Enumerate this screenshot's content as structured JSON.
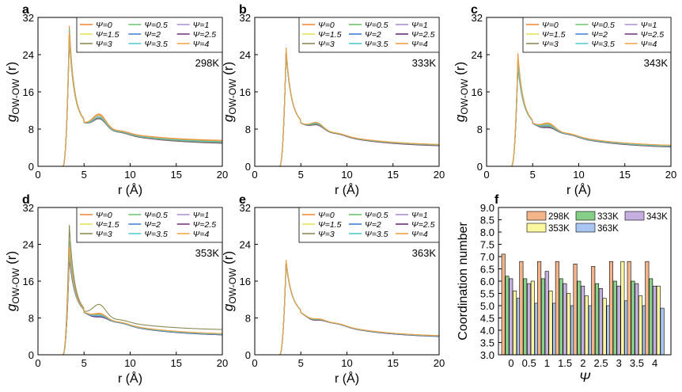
{
  "figure": {
    "xlabel": "r (Å)",
    "ylabel": "g",
    "ylabel_sub": "OW-OW",
    "ylabel_suffix": " (r)"
  },
  "legend_entries": [
    "Ψ=0",
    "Ψ=0.5",
    "Ψ=1",
    "Ψ=1.5",
    "Ψ=2",
    "Ψ=2.5",
    "Ψ=3",
    "Ψ=3.5",
    "Ψ=4"
  ],
  "series_colors": [
    "#ef8a3c",
    "#6cc36a",
    "#a98fd0",
    "#e4e25a",
    "#3f7fd6",
    "#6a2f78",
    "#8a8a55",
    "#4fc7c9",
    "#f0a040"
  ],
  "temp_colors": {
    "298K": "#f4b48a",
    "333K": "#86cf88",
    "343K": "#c6afe0",
    "353K": "#fbf7a0",
    "363K": "#a9c6f2"
  },
  "chart_data": [
    {
      "panel": "a",
      "type": "line",
      "temperature": "298K",
      "xlabel": "r (Å)",
      "ylabel": "gOW-OW (r)",
      "xlim": [
        0,
        20
      ],
      "ylim": [
        0,
        32
      ],
      "xticks": [
        0,
        5,
        10,
        15,
        20
      ],
      "yticks": [
        0,
        8,
        16,
        24,
        32
      ],
      "peak1": {
        "r": 3.4,
        "g": [
          30.2,
          29.6,
          29.0,
          28.6,
          28.2,
          27.8,
          27.5,
          27.8,
          28.5
        ]
      },
      "peak2": {
        "r": 6.5,
        "g": [
          10.8,
          10.5,
          10.2,
          10.0,
          9.9,
          9.8,
          9.9,
          10.1,
          10.6
        ]
      },
      "tail_r20": {
        "g": [
          5.6,
          5.4,
          5.2,
          5.1,
          5.0,
          4.9,
          5.0,
          5.2,
          5.5
        ]
      }
    },
    {
      "panel": "b",
      "type": "line",
      "temperature": "333K",
      "xlabel": "r (Å)",
      "ylabel": "gOW-OW (r)",
      "xlim": [
        0,
        20
      ],
      "ylim": [
        0,
        32
      ],
      "xticks": [
        0,
        5,
        10,
        15,
        20
      ],
      "yticks": [
        0,
        8,
        16,
        24,
        32
      ],
      "peak1": {
        "r": 3.5,
        "g": [
          25.5,
          25.2,
          25.0,
          24.9,
          24.8,
          24.6,
          24.5,
          24.7,
          25.1
        ]
      },
      "peak2": {
        "r": 6.6,
        "g": [
          9.0,
          8.9,
          8.8,
          8.7,
          8.6,
          8.5,
          8.6,
          8.8,
          9.0
        ]
      },
      "tail_r20": {
        "g": [
          4.6,
          4.5,
          4.5,
          4.4,
          4.4,
          4.3,
          4.4,
          4.5,
          4.6
        ]
      }
    },
    {
      "panel": "c",
      "type": "line",
      "temperature": "343K",
      "xlabel": "r (Å)",
      "ylabel": "gOW-OW (r)",
      "xlim": [
        0,
        20
      ],
      "ylim": [
        0,
        32
      ],
      "xticks": [
        0,
        5,
        10,
        15,
        20
      ],
      "yticks": [
        0,
        8,
        16,
        24,
        32
      ],
      "peak1": {
        "r": 3.5,
        "g": [
          24.3,
          23.6,
          23.0,
          22.6,
          22.2,
          21.8,
          21.5,
          22.0,
          23.8
        ]
      },
      "peak2": {
        "r": 6.6,
        "g": [
          8.9,
          8.6,
          8.4,
          8.2,
          8.0,
          7.9,
          8.1,
          8.3,
          8.8
        ]
      },
      "tail_r20": {
        "g": [
          4.4,
          4.3,
          4.2,
          4.1,
          4.1,
          4.0,
          4.1,
          4.2,
          4.4
        ]
      }
    },
    {
      "panel": "d",
      "type": "line",
      "temperature": "353K",
      "xlabel": "r (Å)",
      "ylabel": "gOW-OW (r)",
      "xlim": [
        0,
        20
      ],
      "ylim": [
        0,
        32
      ],
      "xticks": [
        0,
        5,
        10,
        15,
        20
      ],
      "yticks": [
        0,
        8,
        16,
        24,
        32
      ],
      "peak1": {
        "r": 3.4,
        "g": [
          22.5,
          24.8,
          23.8,
          21.8,
          21.5,
          21.2,
          28.2,
          22.0,
          23.5
        ]
      },
      "peak2": {
        "r": 6.6,
        "g": [
          8.6,
          8.4,
          8.2,
          8.0,
          7.9,
          7.8,
          10.5,
          8.1,
          8.5
        ]
      },
      "tail_r20": {
        "g": [
          4.5,
          4.4,
          4.3,
          4.3,
          4.2,
          4.2,
          5.5,
          4.3,
          4.5
        ]
      }
    },
    {
      "panel": "e",
      "type": "line",
      "temperature": "363K",
      "xlabel": "r (Å)",
      "ylabel": "gOW-OW (r)",
      "xlim": [
        0,
        20
      ],
      "ylim": [
        0,
        32
      ],
      "xticks": [
        0,
        5,
        10,
        15,
        20
      ],
      "yticks": [
        0,
        8,
        16,
        24,
        32
      ],
      "peak1": {
        "r": 3.5,
        "g": [
          20.6,
          20.5,
          20.4,
          20.3,
          20.2,
          20.1,
          20.0,
          20.2,
          20.5
        ]
      },
      "peak2": {
        "r": 6.6,
        "g": [
          7.4,
          7.3,
          7.3,
          7.2,
          7.2,
          7.1,
          7.2,
          7.3,
          7.4
        ]
      },
      "tail_r20": {
        "g": [
          4.0,
          3.9,
          3.9,
          3.9,
          3.8,
          3.8,
          3.9,
          3.9,
          4.0
        ]
      }
    },
    {
      "panel": "f",
      "type": "bar",
      "xlabel": "Ψ",
      "ylabel": "Coordination number",
      "ylim": [
        3.0,
        9.0
      ],
      "yticks": [
        "3.0",
        "3.5",
        "4.0",
        "4.5",
        "5.0",
        "5.5",
        "6.0",
        "6.5",
        "7.0",
        "7.5",
        "8.0",
        "8.5",
        "9.0"
      ],
      "categories": [
        "0",
        "0.5",
        "1",
        "1.5",
        "2",
        "2.5",
        "3",
        "3.5",
        "4"
      ],
      "series": [
        {
          "name": "298K",
          "values": [
            7.1,
            6.8,
            6.8,
            6.8,
            6.7,
            6.6,
            6.8,
            6.8,
            6.8
          ]
        },
        {
          "name": "333K",
          "values": [
            6.2,
            6.1,
            6.1,
            6.1,
            6.0,
            5.9,
            6.0,
            6.0,
            6.1
          ]
        },
        {
          "name": "343K",
          "values": [
            6.1,
            5.9,
            6.4,
            5.9,
            5.8,
            5.7,
            5.8,
            5.9,
            5.8
          ]
        },
        {
          "name": "353K",
          "values": [
            5.6,
            6.0,
            5.6,
            5.5,
            5.4,
            5.3,
            6.8,
            5.4,
            5.8
          ]
        },
        {
          "name": "363K",
          "values": [
            5.3,
            5.1,
            5.1,
            5.0,
            5.0,
            5.0,
            5.2,
            5.0,
            4.9
          ]
        }
      ]
    }
  ]
}
